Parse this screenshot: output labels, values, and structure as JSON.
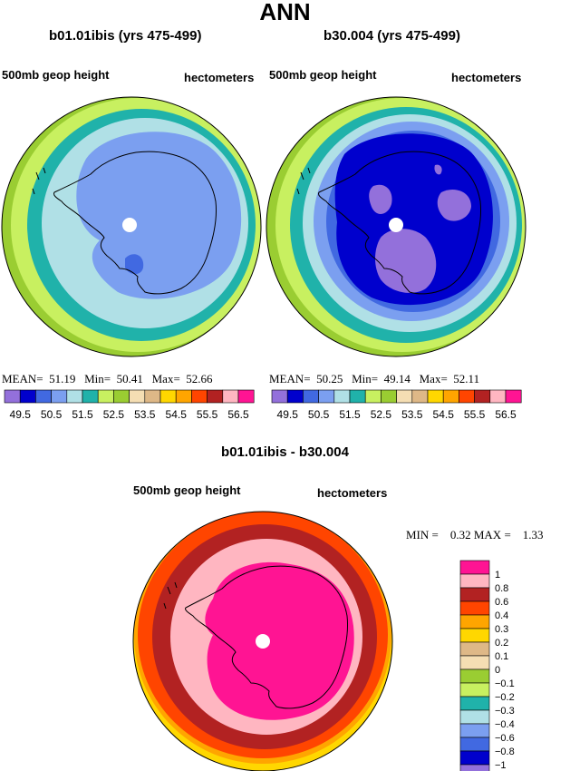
{
  "page_title": "ANN",
  "panel_left": {
    "title": "b01.01ibis (yrs 475-499)",
    "left_label": "500mb geop height",
    "right_label": "hectometers",
    "stats": {
      "mean_label": "MEAN=",
      "mean": "51.19",
      "min_label": "Min=",
      "min": "50.41",
      "max_label": "Max=",
      "max": "52.66"
    }
  },
  "panel_right": {
    "title": "b30.004 (yrs 475-499)",
    "left_label": "500mb geop height",
    "right_label": "hectometers",
    "stats": {
      "mean_label": "MEAN=",
      "mean": "50.25",
      "min_label": "Min=",
      "min": "49.14",
      "max_label": "Max=",
      "max": "52.11"
    }
  },
  "panel_diff": {
    "title": "b01.01ibis - b30.004",
    "left_label": "500mb geop height",
    "right_label": "hectometers",
    "stats": {
      "min_label": "MIN =",
      "min": "0.32",
      "max_label": "MAX =",
      "max": "1.33"
    }
  },
  "colorbar_top": {
    "colors": [
      "#9370db",
      "#0000cd",
      "#4169e1",
      "#7b9ff0",
      "#b0e0e6",
      "#20b2aa",
      "#c8f060",
      "#9acd32",
      "#f5deb3",
      "#deb887",
      "#ffd700",
      "#ffa500",
      "#ff4500",
      "#b22222",
      "#ffb6c1",
      "#ff1493"
    ],
    "labels": [
      "49.5",
      "50.5",
      "51.5",
      "52.5",
      "53.5",
      "54.5",
      "55.5",
      "56.5"
    ]
  },
  "colorbar_diff": {
    "colors": [
      "#ff1493",
      "#ffb6c1",
      "#b22222",
      "#ff4500",
      "#ffa500",
      "#ffd700",
      "#deb887",
      "#f5deb3",
      "#9acd32",
      "#c8f060",
      "#20b2aa",
      "#b0e0e6",
      "#7b9ff0",
      "#4169e1",
      "#0000cd",
      "#9370db"
    ],
    "labels": [
      "1",
      "0.8",
      "0.6",
      "0.4",
      "0.3",
      "0.2",
      "0.1",
      "0",
      "−0.1",
      "−0.2",
      "−0.3",
      "−0.4",
      "−0.6",
      "−0.8",
      "−1"
    ]
  },
  "map_left_bands": [
    "#9acd32",
    "#c8f060",
    "#20b2aa",
    "#b0e0e6",
    "#7b9ff0"
  ],
  "map_right_bands": [
    "#9acd32",
    "#c8f060",
    "#20b2aa",
    "#b0e0e6",
    "#7b9ff0",
    "#4169e1",
    "#0000cd",
    "#9370db"
  ],
  "map_diff_bands": [
    "#ffd700",
    "#ffa500",
    "#ff4500",
    "#b22222",
    "#ffb6c1",
    "#ff1493"
  ]
}
